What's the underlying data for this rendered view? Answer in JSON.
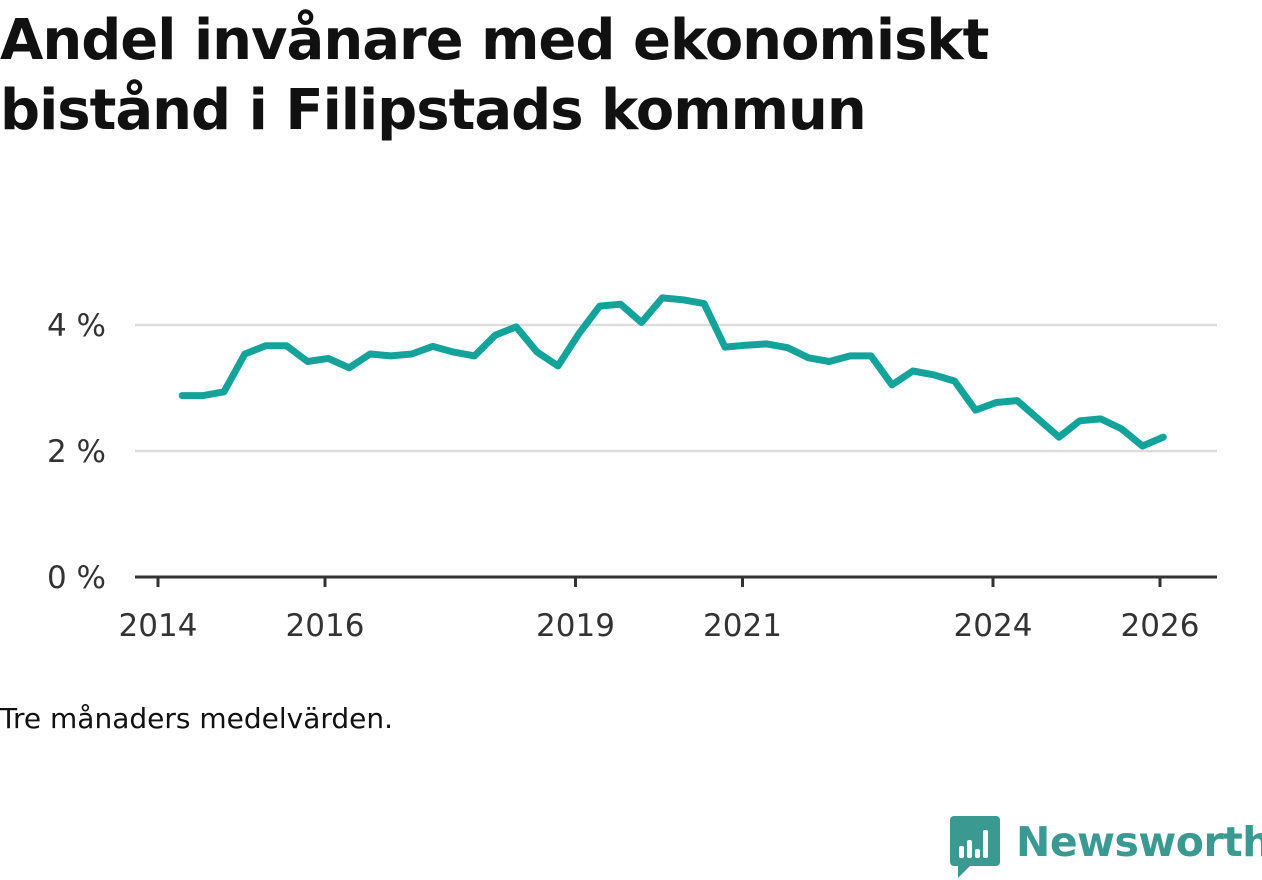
{
  "title": "Andel invånare med ekonomiskt bistånd i Filipstads kommun",
  "caption": "Tre månaders medelvärden.",
  "brand": {
    "name": "Newsworthy",
    "icon": "newsworthy-logo-icon"
  },
  "colors": {
    "line": "#13a39b",
    "grid": "#dddddd",
    "axis": "#333333",
    "brand": "#3a9a92"
  },
  "chart_data": {
    "type": "line",
    "title": "Andel invånare med ekonomiskt bistånd i Filipstads kommun",
    "xlabel": "",
    "ylabel": "",
    "ylim": [
      0,
      5
    ],
    "xlim": [
      2013.7,
      2026.45
    ],
    "y_ticks": [
      0,
      2,
      4
    ],
    "y_tick_labels": [
      "0 %",
      "2 %",
      "4 %"
    ],
    "x_ticks": [
      2014,
      2016,
      2019,
      2021,
      2024,
      2026
    ],
    "x_tick_labels": [
      "2014",
      "2016",
      "2019",
      "2021",
      "2024",
      "2026"
    ],
    "grid": true,
    "series": [
      {
        "name": "Andel invånare med ekonomiskt bistånd",
        "x": [
          2014.29,
          2014.54,
          2014.79,
          2015.04,
          2015.29,
          2015.54,
          2015.79,
          2016.04,
          2016.29,
          2016.54,
          2016.79,
          2017.04,
          2017.29,
          2017.54,
          2017.79,
          2018.04,
          2018.29,
          2018.54,
          2018.79,
          2019.04,
          2019.29,
          2019.54,
          2019.79,
          2020.04,
          2020.29,
          2020.54,
          2020.79,
          2021.04,
          2021.29,
          2021.54,
          2021.79,
          2022.04,
          2022.29,
          2022.54,
          2022.79,
          2023.04,
          2023.29,
          2023.54,
          2023.79,
          2024.04,
          2024.29,
          2024.54,
          2024.79,
          2025.04,
          2025.29,
          2025.54,
          2025.79,
          2026.04
        ],
        "values": [
          2.88,
          2.88,
          2.94,
          3.54,
          3.67,
          3.67,
          3.42,
          3.47,
          3.32,
          3.54,
          3.51,
          3.54,
          3.66,
          3.57,
          3.51,
          3.84,
          3.97,
          3.57,
          3.35,
          3.86,
          4.3,
          4.33,
          4.04,
          4.43,
          4.4,
          4.34,
          3.65,
          3.68,
          3.7,
          3.64,
          3.48,
          3.42,
          3.51,
          3.51,
          3.05,
          3.27,
          3.21,
          3.11,
          2.65,
          2.77,
          2.8,
          2.51,
          2.22,
          2.48,
          2.51,
          2.35,
          2.08,
          2.22
        ]
      }
    ]
  }
}
